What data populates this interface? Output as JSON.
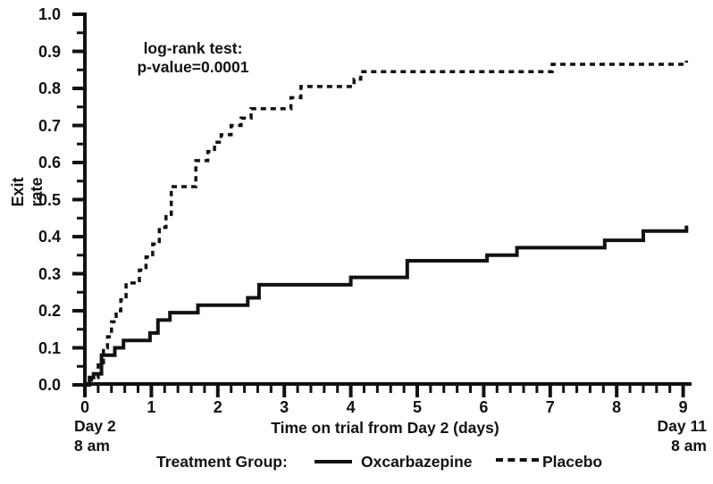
{
  "figure": {
    "background": "#ffffff",
    "ink_color": "#121212"
  },
  "chart_data": {
    "type": "line",
    "subtype": "step-survival",
    "title": "",
    "annotation": {
      "line1": "log-rank test:",
      "line2": "p-value=0.0001"
    },
    "xlabel": "Time on trial from Day 2 (days)",
    "ylabel": "Exit rate",
    "xlim": [
      0,
      9.1
    ],
    "ylim": [
      0,
      1.0
    ],
    "grid": "off",
    "x_major_ticks": [
      0,
      1,
      2,
      3,
      4,
      5,
      6,
      7,
      8,
      9
    ],
    "x_minor_tick_step": 0.2,
    "y_major_ticks": [
      0.0,
      0.1,
      0.2,
      0.3,
      0.4,
      0.5,
      0.6,
      0.7,
      0.8,
      0.9,
      1.0
    ],
    "y_major_tick_labels": [
      "0.0",
      "0.1",
      "0.2",
      "0.3",
      "0.4",
      "0.5",
      "0.6",
      "0.7",
      "0.8",
      "0.9",
      "1.0"
    ],
    "y_minor_tick_step": 0.05,
    "x_axis_start_annotation": {
      "line1": "Day 2",
      "line2": "8 am"
    },
    "x_axis_end_annotation": {
      "line1": "Day 11",
      "line2": "8 am"
    },
    "legend": {
      "title": "Treatment Group:",
      "position": "bottom",
      "entries": [
        {
          "label": "Oxcarbazepine",
          "line_style": "solid"
        },
        {
          "label": "Placebo",
          "line_style": "dashed"
        }
      ]
    },
    "series": [
      {
        "name": "Oxcarbazepine",
        "line_style": "solid",
        "step_points": [
          [
            0.0,
            0.0
          ],
          [
            0.07,
            0.02
          ],
          [
            0.13,
            0.03
          ],
          [
            0.25,
            0.08
          ],
          [
            0.45,
            0.1
          ],
          [
            0.58,
            0.12
          ],
          [
            0.98,
            0.14
          ],
          [
            1.1,
            0.175
          ],
          [
            1.28,
            0.195
          ],
          [
            1.7,
            0.215
          ],
          [
            2.45,
            0.235
          ],
          [
            2.62,
            0.27
          ],
          [
            4.0,
            0.29
          ],
          [
            4.85,
            0.335
          ],
          [
            6.05,
            0.35
          ],
          [
            6.5,
            0.37
          ],
          [
            7.82,
            0.39
          ],
          [
            8.4,
            0.415
          ],
          [
            9.05,
            0.43
          ]
        ]
      },
      {
        "name": "Placebo",
        "line_style": "dashed",
        "step_points": [
          [
            0.0,
            0.0
          ],
          [
            0.1,
            0.02
          ],
          [
            0.2,
            0.06
          ],
          [
            0.28,
            0.1
          ],
          [
            0.34,
            0.13
          ],
          [
            0.4,
            0.17
          ],
          [
            0.47,
            0.2
          ],
          [
            0.54,
            0.23
          ],
          [
            0.62,
            0.275
          ],
          [
            0.82,
            0.31
          ],
          [
            0.92,
            0.345
          ],
          [
            1.02,
            0.38
          ],
          [
            1.12,
            0.425
          ],
          [
            1.22,
            0.46
          ],
          [
            1.3,
            0.535
          ],
          [
            1.67,
            0.605
          ],
          [
            1.85,
            0.63
          ],
          [
            1.95,
            0.655
          ],
          [
            2.05,
            0.675
          ],
          [
            2.2,
            0.7
          ],
          [
            2.35,
            0.72
          ],
          [
            2.5,
            0.745
          ],
          [
            3.1,
            0.775
          ],
          [
            3.25,
            0.805
          ],
          [
            4.05,
            0.825
          ],
          [
            4.15,
            0.845
          ],
          [
            7.03,
            0.865
          ],
          [
            9.05,
            0.875
          ]
        ]
      }
    ]
  }
}
